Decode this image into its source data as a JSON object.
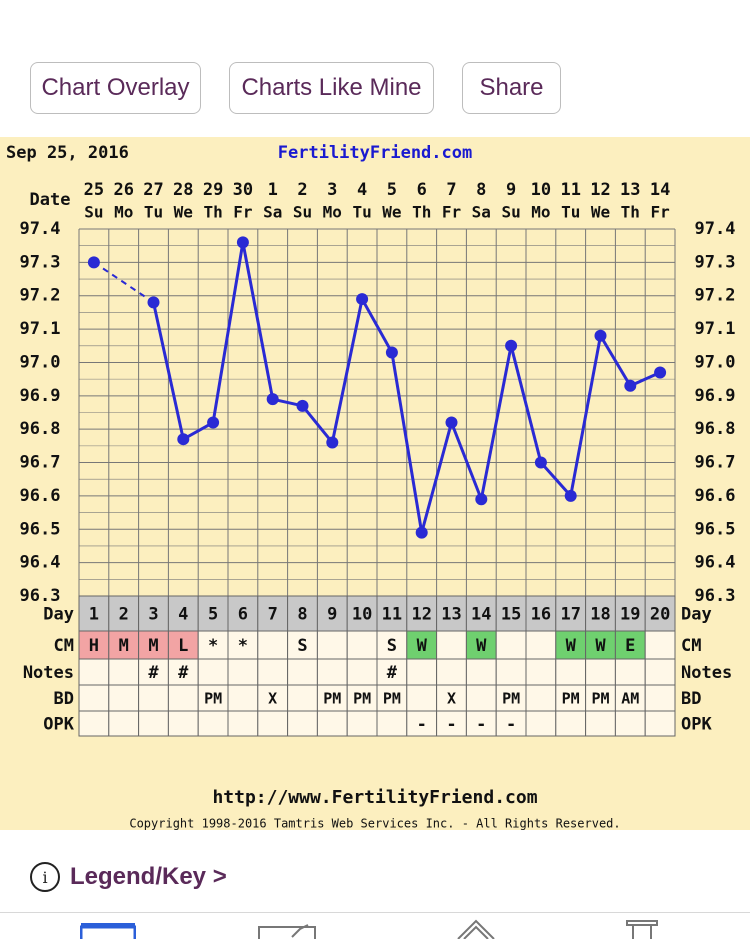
{
  "toolbar": {
    "overlay_label": "Chart Overlay",
    "like_mine_label": "Charts Like Mine",
    "share_label": "Share"
  },
  "chart_header": {
    "date": "Sep 25, 2016",
    "brand": "FertilityFriend.com"
  },
  "chart_data": {
    "type": "line",
    "row_labels": {
      "date": "Date",
      "day": "Day",
      "cm": "CM",
      "notes": "Notes",
      "bd": "BD",
      "opk": "OPK"
    },
    "dates": [
      "25",
      "26",
      "27",
      "28",
      "29",
      "30",
      "1",
      "2",
      "3",
      "4",
      "5",
      "6",
      "7",
      "8",
      "9",
      "10",
      "11",
      "12",
      "13",
      "14"
    ],
    "weekdays": [
      "Su",
      "Mo",
      "Tu",
      "We",
      "Th",
      "Fr",
      "Sa",
      "Su",
      "Mo",
      "Tu",
      "We",
      "Th",
      "Fr",
      "Sa",
      "Su",
      "Mo",
      "Tu",
      "We",
      "Th",
      "Fr"
    ],
    "days": [
      "1",
      "2",
      "3",
      "4",
      "5",
      "6",
      "7",
      "8",
      "9",
      "10",
      "11",
      "12",
      "13",
      "14",
      "15",
      "16",
      "17",
      "18",
      "19",
      "20"
    ],
    "temperatures": [
      97.3,
      null,
      97.18,
      96.77,
      96.82,
      97.36,
      96.89,
      96.87,
      96.76,
      97.19,
      97.03,
      96.49,
      96.82,
      96.59,
      97.05,
      96.7,
      96.6,
      97.08,
      96.93,
      96.97
    ],
    "y_ticks": [
      "97.4",
      "97.3",
      "97.2",
      "97.1",
      "97.0",
      "96.9",
      "96.8",
      "96.7",
      "96.6",
      "96.5",
      "96.4",
      "96.3"
    ],
    "ylim": [
      96.3,
      97.4
    ],
    "cm": [
      "H",
      "M",
      "M",
      "L",
      "*",
      "*",
      "",
      "S",
      "",
      "",
      "S",
      "W",
      "",
      "W",
      "",
      "",
      "W",
      "W",
      "E",
      ""
    ],
    "cm_colors": [
      "red",
      "red",
      "red",
      "red",
      "",
      "",
      "",
      "",
      "",
      "",
      "",
      "green",
      "",
      "green",
      "",
      "",
      "green",
      "green",
      "green",
      ""
    ],
    "notes": [
      "",
      "",
      "#",
      "#",
      "",
      "",
      "",
      "",
      "",
      "",
      "#",
      "",
      "",
      "",
      "",
      "",
      "",
      "",
      "",
      ""
    ],
    "bd": [
      "",
      "",
      "",
      "",
      "PM",
      "",
      "X",
      "",
      "PM",
      "PM",
      "PM",
      "",
      "X",
      "",
      "PM",
      "",
      "PM",
      "PM",
      "AM",
      ""
    ],
    "opk": [
      "",
      "",
      "",
      "",
      "",
      "",
      "",
      "",
      "",
      "",
      "",
      "-",
      "-",
      "-",
      "-",
      "",
      "",
      "",
      "",
      ""
    ],
    "colors": {
      "line": "#2a2ad4",
      "cm_red": "#f2a4a4",
      "cm_green": "#6fd06f",
      "grid": "#777777",
      "background": "#fcefbf"
    }
  },
  "footer": {
    "url": "http://www.FertilityFriend.com",
    "copyright": "Copyright 1998-2016 Tamtris Web Services Inc. - All Rights Reserved."
  },
  "legend": {
    "icon": "i",
    "label": "Legend/Key >"
  },
  "tabbar": {
    "icons": [
      "calendar-icon",
      "checklist-icon",
      "tag-icon",
      "inbox-icon"
    ],
    "accent": "#2b5fd9"
  }
}
